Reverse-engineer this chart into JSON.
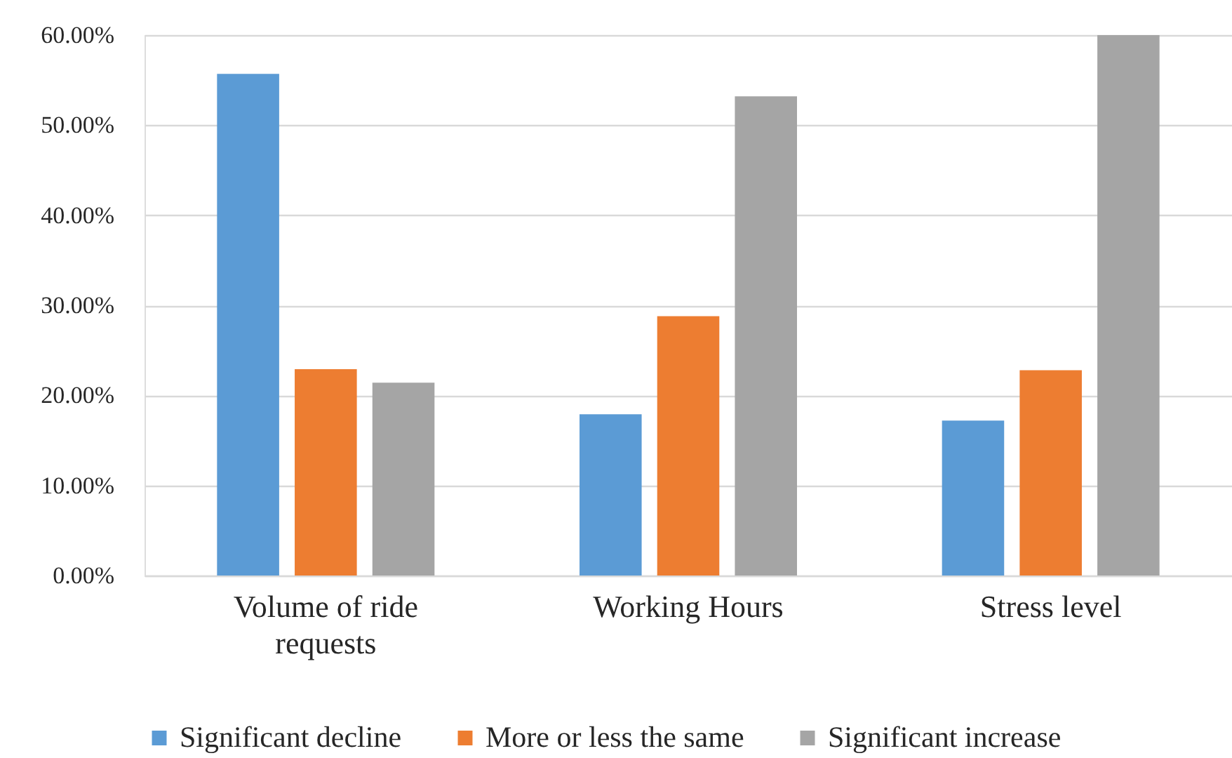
{
  "chart_data": {
    "type": "bar",
    "categories": [
      "Volume of ride requests",
      "Working Hours",
      "Stress level"
    ],
    "series": [
      {
        "name": "Significant decline",
        "color": "#5b9bd5",
        "values": [
          55.7,
          17.9,
          17.2
        ]
      },
      {
        "name": "More or less the same",
        "color": "#ed7d31",
        "values": [
          22.9,
          28.8,
          22.8
        ]
      },
      {
        "name": "Significant increase",
        "color": "#a5a5a5",
        "values": [
          21.4,
          53.2,
          60.0
        ]
      }
    ],
    "ylim": [
      0,
      60
    ],
    "yticks": [
      {
        "value": 0,
        "label": "0.00%"
      },
      {
        "value": 10,
        "label": "10.00%"
      },
      {
        "value": 20,
        "label": "20.00%"
      },
      {
        "value": 30,
        "label": "30.00%"
      },
      {
        "value": 40,
        "label": "40.00%"
      },
      {
        "value": 50,
        "label": "50.00%"
      },
      {
        "value": 60,
        "label": "60.00%"
      }
    ],
    "grid": "y",
    "legend": "bottom"
  }
}
